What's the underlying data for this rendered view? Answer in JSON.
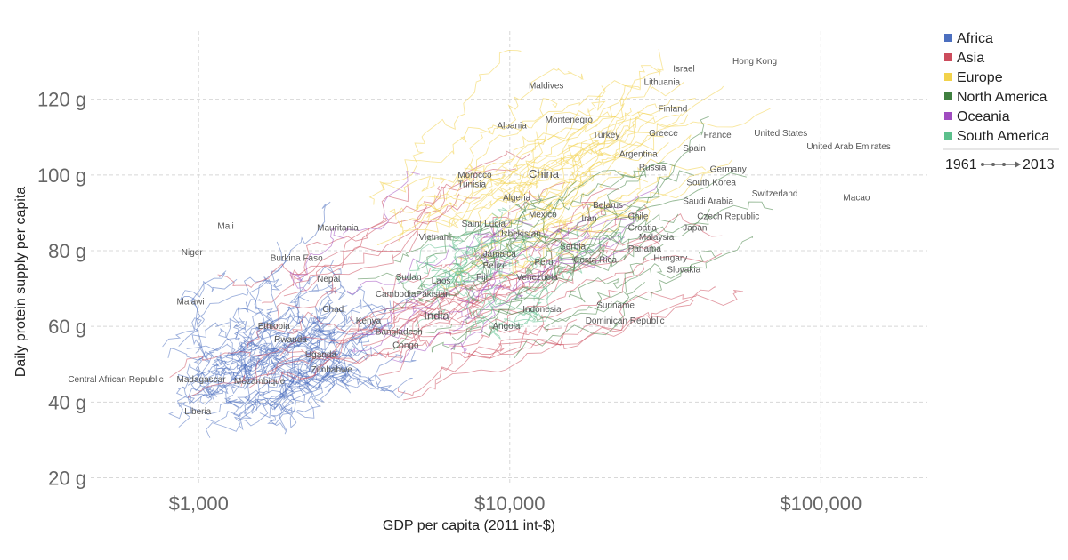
{
  "chart_data": {
    "type": "scatter",
    "title": "",
    "xlabel": "GDP per capita (2011 int-$)",
    "ylabel": "Daily protein supply per capita",
    "xscale": "log",
    "xlim": [
      450,
      220000
    ],
    "ylim": [
      18,
      138
    ],
    "x_ticks": [
      {
        "value": 1000,
        "label": "$1,000"
      },
      {
        "value": 10000,
        "label": "$10,000"
      },
      {
        "value": 100000,
        "label": "$100,000"
      }
    ],
    "y_ticks": [
      {
        "value": 20,
        "label": "20 g"
      },
      {
        "value": 40,
        "label": "40 g"
      },
      {
        "value": 60,
        "label": "60 g"
      },
      {
        "value": 80,
        "label": "80 g"
      },
      {
        "value": 100,
        "label": "100 g"
      },
      {
        "value": 120,
        "label": "120 g"
      }
    ],
    "grid": true,
    "legend_position": "top-right",
    "legend": [
      {
        "name": "Africa",
        "color": "#4c6fbf"
      },
      {
        "name": "Asia",
        "color": "#cc4c5c"
      },
      {
        "name": "Europe",
        "color": "#f2d24a"
      },
      {
        "name": "North America",
        "color": "#3f7f3f"
      },
      {
        "name": "Oceania",
        "color": "#a04cc0"
      },
      {
        "name": "South America",
        "color": "#5cc08c"
      }
    ],
    "time_range": {
      "start": "1961",
      "end": "2013"
    },
    "labels": [
      {
        "text": "Hong Kong",
        "x": 52000,
        "y": 130
      },
      {
        "text": "Israel",
        "x": 33500,
        "y": 128
      },
      {
        "text": "Lithuania",
        "x": 27000,
        "y": 124.5
      },
      {
        "text": "Maldives",
        "x": 11500,
        "y": 123.5
      },
      {
        "text": "Finland",
        "x": 30000,
        "y": 117.5
      },
      {
        "text": "Albania",
        "x": 9100,
        "y": 113
      },
      {
        "text": "Montenegro",
        "x": 13000,
        "y": 114.5
      },
      {
        "text": "Turkey",
        "x": 18500,
        "y": 110.5
      },
      {
        "text": "Greece",
        "x": 28000,
        "y": 111
      },
      {
        "text": "France",
        "x": 42000,
        "y": 110.5
      },
      {
        "text": "United States",
        "x": 61000,
        "y": 111
      },
      {
        "text": "United Arab Emirates",
        "x": 90000,
        "y": 107.5
      },
      {
        "text": "Argentina",
        "x": 22500,
        "y": 105.5
      },
      {
        "text": "Spain",
        "x": 36000,
        "y": 107
      },
      {
        "text": "Russia",
        "x": 26000,
        "y": 102
      },
      {
        "text": "Germany",
        "x": 44000,
        "y": 101.5
      },
      {
        "text": "Morocco",
        "x": 6800,
        "y": 100
      },
      {
        "text": "China",
        "x": 11500,
        "y": 100,
        "size": "big"
      },
      {
        "text": "Tunisia",
        "x": 6800,
        "y": 97.5
      },
      {
        "text": "South Korea",
        "x": 37000,
        "y": 98
      },
      {
        "text": "Switzerland",
        "x": 60000,
        "y": 95
      },
      {
        "text": "Macao",
        "x": 118000,
        "y": 94
      },
      {
        "text": "Algeria",
        "x": 9500,
        "y": 94
      },
      {
        "text": "Belarus",
        "x": 18500,
        "y": 92
      },
      {
        "text": "Saudi Arabia",
        "x": 36000,
        "y": 93
      },
      {
        "text": "Mexico",
        "x": 11500,
        "y": 89.5
      },
      {
        "text": "Iran",
        "x": 17000,
        "y": 88.5
      },
      {
        "text": "Chile",
        "x": 24000,
        "y": 89
      },
      {
        "text": "Czech Republic",
        "x": 40000,
        "y": 89
      },
      {
        "text": "Mali",
        "x": 1150,
        "y": 86.5
      },
      {
        "text": "Mauritania",
        "x": 2400,
        "y": 86
      },
      {
        "text": "Saint Lucia",
        "x": 7000,
        "y": 87
      },
      {
        "text": "Croatia",
        "x": 24000,
        "y": 86
      },
      {
        "text": "Japan",
        "x": 36000,
        "y": 86
      },
      {
        "text": "Uzbekistan",
        "x": 9100,
        "y": 84.5
      },
      {
        "text": "Vietnam",
        "x": 5100,
        "y": 83.5
      },
      {
        "text": "Malaysia",
        "x": 26000,
        "y": 83.5
      },
      {
        "text": "Serbia",
        "x": 14500,
        "y": 81
      },
      {
        "text": "Panama",
        "x": 24000,
        "y": 80.5
      },
      {
        "text": "Niger",
        "x": 880,
        "y": 79.5
      },
      {
        "text": "Jamaica",
        "x": 8200,
        "y": 79
      },
      {
        "text": "Burkina Faso",
        "x": 1700,
        "y": 78
      },
      {
        "text": "Hungary",
        "x": 29000,
        "y": 78
      },
      {
        "text": "Costa Rica",
        "x": 16000,
        "y": 77.5
      },
      {
        "text": "Peru",
        "x": 12000,
        "y": 77
      },
      {
        "text": "Belize",
        "x": 8200,
        "y": 76
      },
      {
        "text": "Slovakia",
        "x": 32000,
        "y": 75
      },
      {
        "text": "Fiji",
        "x": 7800,
        "y": 73
      },
      {
        "text": "Venezuela",
        "x": 10500,
        "y": 73
      },
      {
        "text": "Sudan",
        "x": 4300,
        "y": 73
      },
      {
        "text": "Nepal",
        "x": 2400,
        "y": 72.5
      },
      {
        "text": "Laos",
        "x": 5600,
        "y": 72
      },
      {
        "text": "Cambodia",
        "x": 3700,
        "y": 68.5
      },
      {
        "text": "Pakistan",
        "x": 5000,
        "y": 68.5
      },
      {
        "text": "Malawi",
        "x": 850,
        "y": 66.5
      },
      {
        "text": "Suriname",
        "x": 19000,
        "y": 65.5
      },
      {
        "text": "Indonesia",
        "x": 11000,
        "y": 64.5
      },
      {
        "text": "Chad",
        "x": 2500,
        "y": 64.5
      },
      {
        "text": "India",
        "x": 5300,
        "y": 62.5,
        "size": "big"
      },
      {
        "text": "Kenya",
        "x": 3200,
        "y": 61.5
      },
      {
        "text": "Dominican Republic",
        "x": 17500,
        "y": 61.5
      },
      {
        "text": "Ethiopia",
        "x": 1550,
        "y": 60
      },
      {
        "text": "Angola",
        "x": 8800,
        "y": 60
      },
      {
        "text": "Bangladesh",
        "x": 3700,
        "y": 58.5
      },
      {
        "text": "Rwanda",
        "x": 1750,
        "y": 56.5
      },
      {
        "text": "Congo",
        "x": 4200,
        "y": 55
      },
      {
        "text": "Uganda",
        "x": 2200,
        "y": 52.5
      },
      {
        "text": "Zimbabwe",
        "x": 2300,
        "y": 48.5
      },
      {
        "text": "Central African Republic",
        "x": 380,
        "y": 46
      },
      {
        "text": "Madagascar",
        "x": 850,
        "y": 46
      },
      {
        "text": "Mozambique",
        "x": 1300,
        "y": 45.5
      },
      {
        "text": "Liberia",
        "x": 900,
        "y": 37.5
      }
    ]
  }
}
